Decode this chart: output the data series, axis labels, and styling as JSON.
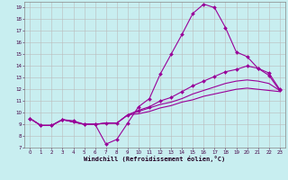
{
  "xlabel": "Windchill (Refroidissement éolien,°C)",
  "bg_color": "#c8eef0",
  "line_color": "#990099",
  "grid_color": "#bbbbbb",
  "xlim": [
    -0.5,
    23.5
  ],
  "ylim": [
    7,
    19.5
  ],
  "yticks": [
    7,
    8,
    9,
    10,
    11,
    12,
    13,
    14,
    15,
    16,
    17,
    18,
    19
  ],
  "xticks": [
    0,
    1,
    2,
    3,
    4,
    5,
    6,
    7,
    8,
    9,
    10,
    11,
    12,
    13,
    14,
    15,
    16,
    17,
    18,
    19,
    20,
    21,
    22,
    23
  ],
  "series": [
    {
      "x": [
        0,
        1,
        2,
        3,
        4,
        5,
        6,
        7,
        8,
        9,
        10,
        11,
        12,
        13,
        14,
        15,
        16,
        17,
        18,
        19,
        20,
        21,
        22,
        23
      ],
      "y": [
        9.5,
        8.9,
        8.9,
        9.4,
        9.3,
        9.0,
        9.0,
        7.3,
        7.7,
        9.1,
        10.5,
        11.2,
        13.3,
        15.0,
        16.7,
        18.5,
        19.3,
        19.0,
        17.3,
        15.2,
        14.8,
        13.8,
        13.2,
        11.9
      ],
      "marker": "D",
      "ms": 2.0,
      "lw": 0.8
    },
    {
      "x": [
        0,
        1,
        2,
        3,
        4,
        5,
        6,
        7,
        8,
        9,
        10,
        11,
        12,
        13,
        14,
        15,
        16,
        17,
        18,
        19,
        20,
        21,
        22,
        23
      ],
      "y": [
        9.5,
        8.9,
        8.9,
        9.4,
        9.2,
        9.0,
        9.0,
        9.1,
        9.1,
        9.8,
        10.2,
        10.5,
        11.0,
        11.3,
        11.8,
        12.3,
        12.7,
        13.1,
        13.5,
        13.7,
        14.0,
        13.8,
        13.4,
        12.0
      ],
      "marker": "D",
      "ms": 2.0,
      "lw": 0.8
    },
    {
      "x": [
        0,
        1,
        2,
        3,
        4,
        5,
        6,
        7,
        8,
        9,
        10,
        11,
        12,
        13,
        14,
        15,
        16,
        17,
        18,
        19,
        20,
        21,
        22,
        23
      ],
      "y": [
        9.5,
        8.9,
        8.9,
        9.4,
        9.2,
        9.0,
        9.0,
        9.1,
        9.1,
        9.8,
        10.1,
        10.4,
        10.7,
        10.9,
        11.2,
        11.6,
        11.9,
        12.2,
        12.5,
        12.7,
        12.8,
        12.7,
        12.5,
        11.9
      ],
      "marker": null,
      "ms": 0,
      "lw": 0.8
    },
    {
      "x": [
        0,
        1,
        2,
        3,
        4,
        5,
        6,
        7,
        8,
        9,
        10,
        11,
        12,
        13,
        14,
        15,
        16,
        17,
        18,
        19,
        20,
        21,
        22,
        23
      ],
      "y": [
        9.5,
        8.9,
        8.9,
        9.4,
        9.2,
        9.0,
        9.0,
        9.1,
        9.1,
        9.8,
        9.9,
        10.1,
        10.4,
        10.6,
        10.9,
        11.1,
        11.4,
        11.6,
        11.8,
        12.0,
        12.1,
        12.0,
        11.9,
        11.8
      ],
      "marker": null,
      "ms": 0,
      "lw": 0.8
    }
  ]
}
